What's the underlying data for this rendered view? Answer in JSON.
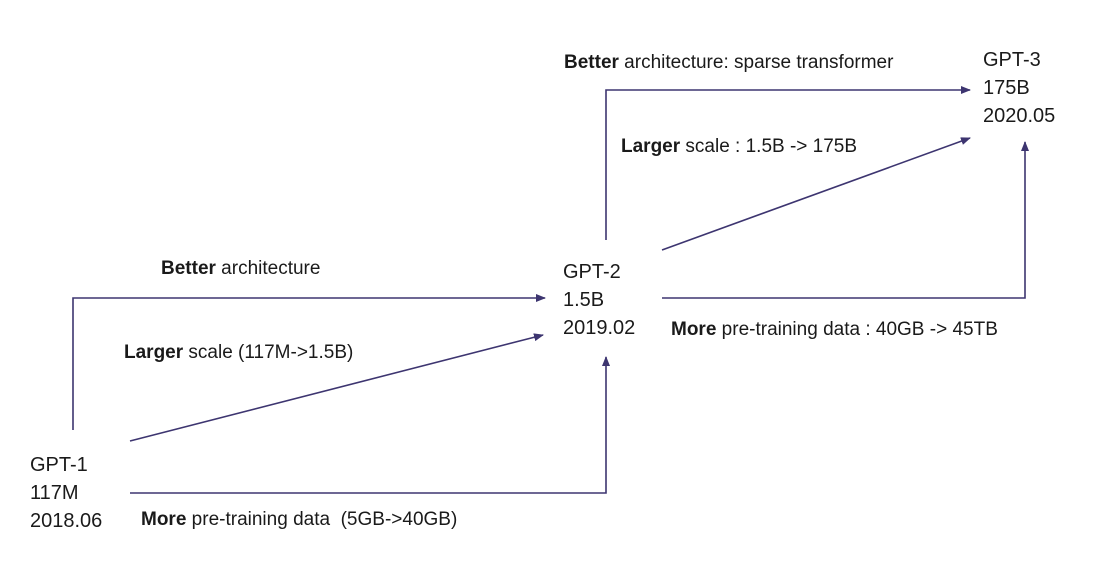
{
  "nodes": {
    "gpt1": {
      "name": "GPT-1",
      "params": "117M",
      "date": "2018.06"
    },
    "gpt2": {
      "name": "GPT-2",
      "params": "1.5B",
      "date": "2019.02"
    },
    "gpt3": {
      "name": "GPT-3",
      "params": "175B",
      "date": "2020.05"
    }
  },
  "edges": {
    "g1_g2_arch": {
      "bold": "Better",
      "rest": " architecture"
    },
    "g1_g2_scale": {
      "bold": "Larger",
      "rest": " scale (117M->1.5B)"
    },
    "g1_g2_data": {
      "bold": "More",
      "rest": " pre-training data  (5GB->40GB)"
    },
    "g2_g3_arch": {
      "bold": "Better",
      "rest": " architecture: sparse transformer"
    },
    "g2_g3_scale": {
      "bold": "Larger",
      "rest": " scale : 1.5B -> 175B"
    },
    "g2_g3_data": {
      "bold": "More",
      "rest": " pre-training data : 40GB -> 45TB"
    }
  },
  "colors": {
    "arrow": "#3d3570",
    "text": "#1a1a1a"
  }
}
